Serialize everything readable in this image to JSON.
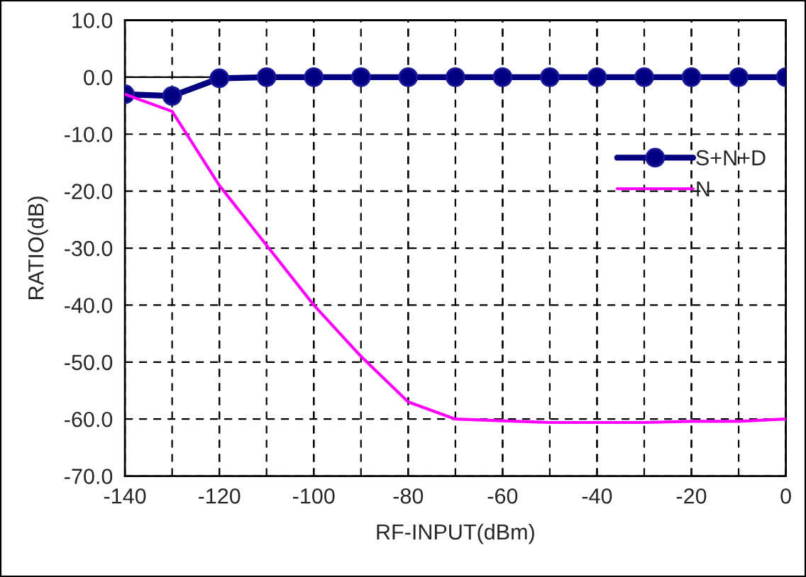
{
  "chart_data": {
    "type": "line",
    "xlabel": "RF-INPUT(dBm)",
    "ylabel": "RATIO(dB)",
    "x": [
      -140,
      -130,
      -120,
      -110,
      -100,
      -90,
      -80,
      -70,
      -60,
      -50,
      -40,
      -30,
      -20,
      -10,
      0
    ],
    "series": [
      {
        "name": "S+N+D",
        "color": "#000080",
        "marker": "circle",
        "values": [
          -3.0,
          -3.3,
          -0.2,
          0.0,
          0.0,
          0.0,
          0.0,
          0.0,
          0.0,
          0.0,
          0.0,
          0.0,
          0.0,
          0.0,
          0.0
        ]
      },
      {
        "name": "N",
        "color": "#ff00ff",
        "marker": "none",
        "values": [
          -3.0,
          -6.0,
          -19.0,
          -29.5,
          -40.0,
          -49.0,
          -57.0,
          -60.0,
          -60.3,
          -60.6,
          -60.6,
          -60.6,
          -60.4,
          -60.4,
          -60.0
        ]
      }
    ],
    "xlim": [
      -140,
      0
    ],
    "xticks": [
      -140,
      -120,
      -100,
      -80,
      -60,
      -40,
      -20,
      0
    ],
    "ylim": [
      -70,
      10
    ],
    "yticks": [
      {
        "value": -70,
        "label": "-70.0"
      },
      {
        "value": -60,
        "label": "-60.0"
      },
      {
        "value": -50,
        "label": "-50.0"
      },
      {
        "value": -40,
        "label": "-40.0"
      },
      {
        "value": -30,
        "label": "-30.0"
      },
      {
        "value": -20,
        "label": "-20.0"
      },
      {
        "value": -10,
        "label": "-10.0"
      },
      {
        "value": 0,
        "label": "0.0"
      },
      {
        "value": 10,
        "label": "10.0"
      }
    ],
    "ref_lines": [
      {
        "axis": "y",
        "value": 0,
        "color": "#000000",
        "line_style": "solid"
      }
    ],
    "grid": true,
    "legend": "right",
    "line_style": "solid"
  }
}
